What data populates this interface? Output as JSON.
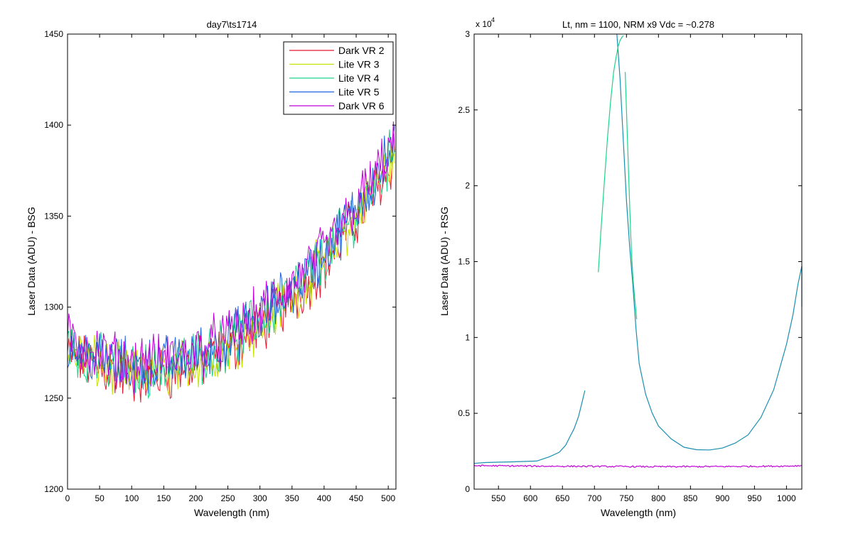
{
  "chart_data": [
    {
      "type": "line",
      "title": "day7\\ts1714",
      "xlabel": "Wavelength (nm)",
      "ylabel": "Laser Data (ADU) - BSG",
      "xlim": [
        0,
        512
      ],
      "ylim": [
        1200,
        1450
      ],
      "xticks": [
        0,
        50,
        100,
        150,
        200,
        250,
        300,
        350,
        400,
        450,
        500
      ],
      "yticks": [
        1200,
        1250,
        1300,
        1350,
        1400,
        1450
      ],
      "legend": "top-right",
      "grid": false,
      "noise_amplitude": 12,
      "trend": {
        "x": [
          0,
          50,
          100,
          150,
          200,
          250,
          300,
          350,
          400,
          450,
          500,
          510
        ],
        "y": [
          1278,
          1270,
          1265,
          1267,
          1272,
          1280,
          1293,
          1308,
          1327,
          1352,
          1380,
          1388
        ]
      },
      "series": [
        {
          "name": "Dark VR 2",
          "color": "#e8182e",
          "offset": -4
        },
        {
          "name": "Lite VR 3",
          "color": "#c6e000",
          "offset": -2
        },
        {
          "name": "Lite VR 4",
          "color": "#1fd38a",
          "offset": 0
        },
        {
          "name": "Lite VR 5",
          "color": "#1f63e0",
          "offset": 2
        },
        {
          "name": "Dark VR 6",
          "color": "#c000d8",
          "offset": 4
        }
      ]
    },
    {
      "type": "line",
      "title": "Lt, nm = 1100, NRM x9 Vdc = ~0.278",
      "xlabel": "Wavelength (nm)",
      "ylabel": "Laser Data (ADU) - RSG",
      "y_multiplier": "x 10",
      "y_exponent": "4",
      "xlim": [
        512,
        1024
      ],
      "ylim": [
        0,
        3
      ],
      "xticks": [
        550,
        600,
        650,
        700,
        750,
        800,
        850,
        900,
        950,
        1000
      ],
      "yticks": [
        0,
        0.5,
        1,
        1.5,
        2,
        2.5,
        3
      ],
      "grid": false,
      "series": [
        {
          "color": "#1a8fb0",
          "segments": [
            {
              "x": [
                512,
                530,
                550,
                570,
                590,
                610,
                630,
                645,
                655,
                662,
                668,
                675,
                680,
                685
              ],
              "y": [
                0.17,
                0.175,
                0.175,
                0.175,
                0.18,
                0.19,
                0.21,
                0.24,
                0.29,
                0.35,
                0.4,
                0.48,
                0.56,
                0.65
              ]
            },
            {
              "x": [
                735,
                740,
                745,
                750,
                755,
                760,
                765,
                770,
                780,
                790,
                800,
                820,
                840,
                860,
                880,
                900,
                920,
                940,
                960,
                980,
                1000,
                1010,
                1018,
                1024
              ],
              "y": [
                3.0,
                2.7,
                2.3,
                1.9,
                1.6,
                1.35,
                1.05,
                0.82,
                0.62,
                0.5,
                0.42,
                0.33,
                0.28,
                0.26,
                0.26,
                0.27,
                0.3,
                0.36,
                0.47,
                0.65,
                0.95,
                1.15,
                1.35,
                1.47
              ]
            },
            {
              "x": [
                1024,
                1024
              ],
              "y": [
                1.47,
                1.2
              ]
            }
          ]
        },
        {
          "color": "#1fd38a",
          "segments": [
            {
              "x": [
                706,
                710,
                715,
                720,
                725,
                730,
                734,
                737,
                740,
                743,
                745
              ],
              "y": [
                1.43,
                1.7,
                2.0,
                2.3,
                2.55,
                2.75,
                2.85,
                2.92,
                2.96,
                2.98,
                2.99
              ]
            },
            {
              "x": [
                748,
                750,
                752,
                754,
                756,
                758,
                760,
                763,
                766
              ],
              "y": [
                2.75,
                2.5,
                2.25,
                2.0,
                1.75,
                1.55,
                1.4,
                1.25,
                1.12
              ]
            }
          ]
        },
        {
          "color": "#c000d8",
          "noise_amplitude": 0.005,
          "segments": [
            {
              "x": [
                512,
                600,
                700,
                800,
                900,
                1000,
                1024
              ],
              "y": [
                0.155,
                0.152,
                0.15,
                0.148,
                0.149,
                0.152,
                0.155
              ]
            }
          ]
        }
      ]
    }
  ]
}
